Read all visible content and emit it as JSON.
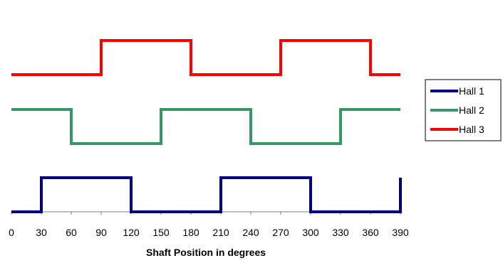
{
  "chart_data": {
    "type": "line",
    "title": "",
    "xlabel": "Shaft Position in degrees",
    "ylabel": "",
    "xlim": [
      0,
      390
    ],
    "x_ticks": [
      0,
      30,
      60,
      90,
      120,
      150,
      180,
      210,
      240,
      270,
      300,
      330,
      360,
      390
    ],
    "grid": false,
    "legend_position": "right",
    "series": [
      {
        "name": "Hall 1",
        "color": "#000080",
        "level_low": 0,
        "level_high": 1,
        "points": [
          [
            0,
            0
          ],
          [
            30,
            0
          ],
          [
            30,
            1
          ],
          [
            120,
            1
          ],
          [
            120,
            0
          ],
          [
            210,
            0
          ],
          [
            210,
            1
          ],
          [
            300,
            1
          ],
          [
            300,
            0
          ],
          [
            390,
            0
          ],
          [
            390,
            1
          ]
        ]
      },
      {
        "name": "Hall 2",
        "color": "#339966",
        "level_low": 2,
        "level_high": 3,
        "points": [
          [
            0,
            3
          ],
          [
            60,
            3
          ],
          [
            60,
            2
          ],
          [
            150,
            2
          ],
          [
            150,
            3
          ],
          [
            240,
            3
          ],
          [
            240,
            2
          ],
          [
            330,
            2
          ],
          [
            330,
            3
          ],
          [
            390,
            3
          ]
        ]
      },
      {
        "name": "Hall 3",
        "color": "#FF0000",
        "level_low": 4,
        "level_high": 5,
        "points": [
          [
            0,
            4
          ],
          [
            90,
            4
          ],
          [
            90,
            5
          ],
          [
            180,
            5
          ],
          [
            180,
            4
          ],
          [
            270,
            4
          ],
          [
            270,
            5
          ],
          [
            360,
            5
          ],
          [
            360,
            4
          ],
          [
            390,
            4
          ]
        ]
      }
    ]
  }
}
